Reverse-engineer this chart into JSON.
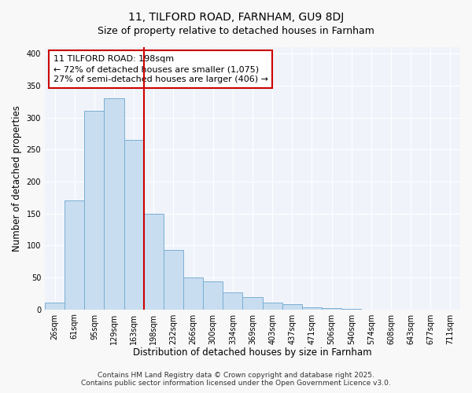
{
  "title": "11, TILFORD ROAD, FARNHAM, GU9 8DJ",
  "subtitle": "Size of property relative to detached houses in Farnham",
  "xlabel": "Distribution of detached houses by size in Farnham",
  "ylabel": "Number of detached properties",
  "bin_labels": [
    "26sqm",
    "61sqm",
    "95sqm",
    "129sqm",
    "163sqm",
    "198sqm",
    "232sqm",
    "266sqm",
    "300sqm",
    "334sqm",
    "369sqm",
    "403sqm",
    "437sqm",
    "471sqm",
    "506sqm",
    "540sqm",
    "574sqm",
    "608sqm",
    "643sqm",
    "677sqm",
    "711sqm"
  ],
  "bar_values": [
    10,
    170,
    311,
    330,
    265,
    150,
    93,
    50,
    44,
    26,
    19,
    11,
    8,
    3,
    2,
    1,
    0,
    0,
    0,
    0,
    0
  ],
  "bar_color": "#c8ddf0",
  "bar_edge_color": "#7aafd4",
  "highlight_line_index": 5,
  "highlight_line_color": "#cc0000",
  "annotation_line1": "11 TILFORD ROAD: 198sqm",
  "annotation_line2": "← 72% of detached houses are smaller (1,075)",
  "annotation_line3": "27% of semi-detached houses are larger (406) →",
  "annotation_box_color": "#ffffff",
  "annotation_box_edge_color": "#cc0000",
  "ylim": [
    0,
    410
  ],
  "yticks": [
    0,
    50,
    100,
    150,
    200,
    250,
    300,
    350,
    400
  ],
  "background_color": "#f8f8f8",
  "plot_bg_color": "#f0f4fa",
  "footer_line1": "Contains HM Land Registry data © Crown copyright and database right 2025.",
  "footer_line2": "Contains public sector information licensed under the Open Government Licence v3.0.",
  "grid_color": "#ffffff",
  "title_fontsize": 10,
  "subtitle_fontsize": 9,
  "axis_label_fontsize": 8.5,
  "tick_fontsize": 7,
  "annotation_fontsize": 8,
  "footer_fontsize": 6.5
}
